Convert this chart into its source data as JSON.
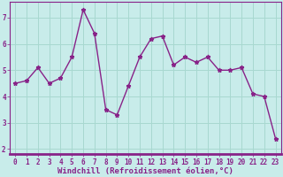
{
  "x": [
    0,
    1,
    2,
    3,
    4,
    5,
    6,
    7,
    8,
    9,
    10,
    11,
    12,
    13,
    14,
    15,
    16,
    17,
    18,
    19,
    20,
    21,
    22,
    23
  ],
  "y": [
    4.5,
    4.6,
    5.1,
    4.5,
    4.7,
    5.5,
    7.3,
    6.4,
    3.5,
    3.3,
    4.4,
    5.5,
    6.2,
    6.3,
    5.2,
    5.5,
    5.3,
    5.5,
    5.0,
    5.0,
    5.1,
    4.1,
    4.0,
    2.4
  ],
  "line_color": "#882288",
  "marker": "*",
  "bg_color": "#c8ecea",
  "grid_color": "#a8d8d0",
  "xlabel": "Windchill (Refroidissement éolien,°C)",
  "xlim": [
    -0.5,
    23.5
  ],
  "ylim": [
    1.8,
    7.6
  ],
  "yticks": [
    2,
    3,
    4,
    5,
    6,
    7
  ],
  "xticks": [
    0,
    1,
    2,
    3,
    4,
    5,
    6,
    7,
    8,
    9,
    10,
    11,
    12,
    13,
    14,
    15,
    16,
    17,
    18,
    19,
    20,
    21,
    22,
    23
  ],
  "tick_fontsize": 5.5,
  "xlabel_fontsize": 6.5,
  "marker_size": 3.5,
  "line_width": 1.0
}
